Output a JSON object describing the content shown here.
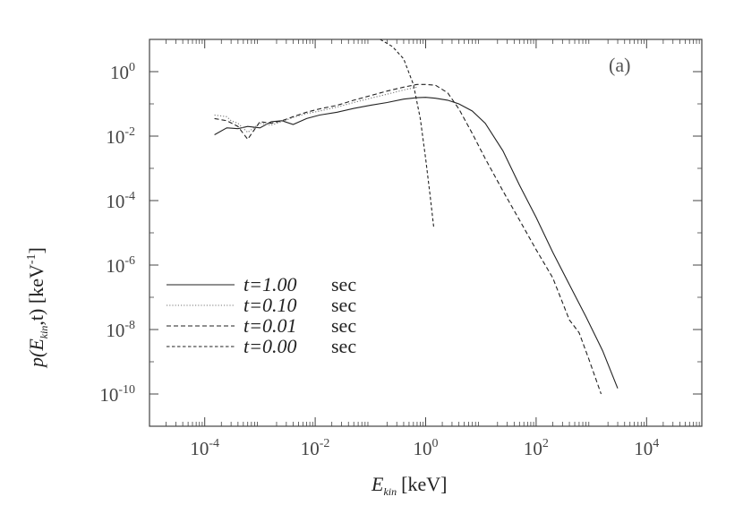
{
  "chart_data": {
    "type": "line",
    "title": "",
    "panel_label": "(a)",
    "xlabel": {
      "main": "E",
      "sub": "kin",
      "unit": "[keV]"
    },
    "ylabel": {
      "text": "p(E",
      "sub": "kin",
      "rest": ",t) [keV",
      "sup": "-1",
      "end": "]"
    },
    "xscale": "log",
    "yscale": "log",
    "xlim": [
      1e-05,
      100000
    ],
    "ylim": [
      1e-11,
      10
    ],
    "xticks": [
      {
        "value": 0.0001,
        "base": "10",
        "exp": "-4"
      },
      {
        "value": 0.01,
        "base": "10",
        "exp": "-2"
      },
      {
        "value": 1,
        "base": "10",
        "exp": "0"
      },
      {
        "value": 100,
        "base": "10",
        "exp": "2"
      },
      {
        "value": 10000,
        "base": "10",
        "exp": "4"
      }
    ],
    "yticks": [
      {
        "value": 1,
        "base": "10",
        "exp": "0"
      },
      {
        "value": 0.01,
        "base": "10",
        "exp": "-2"
      },
      {
        "value": 0.0001,
        "base": "10",
        "exp": "-4"
      },
      {
        "value": 1e-06,
        "base": "10",
        "exp": "-6"
      },
      {
        "value": 1e-08,
        "base": "10",
        "exp": "-8"
      },
      {
        "value": 1e-10,
        "base": "10",
        "exp": "-10"
      }
    ],
    "grid": false,
    "legend_position": "center-left",
    "series": [
      {
        "name": "t=1.00",
        "unit": "sec",
        "style": "solid",
        "color": "#222222",
        "x": [
          0.00015,
          0.00025,
          0.0004,
          0.0006,
          0.001,
          0.0016,
          0.0025,
          0.004,
          0.007,
          0.012,
          0.025,
          0.05,
          0.1,
          0.2,
          0.4,
          0.7,
          1.0,
          1.5,
          2.5,
          4,
          7,
          12,
          25,
          50,
          100,
          200,
          400,
          800,
          1600,
          3000
        ],
        "y": [
          0.011,
          0.018,
          0.017,
          0.02,
          0.018,
          0.028,
          0.03,
          0.023,
          0.035,
          0.045,
          0.055,
          0.072,
          0.09,
          0.11,
          0.14,
          0.155,
          0.16,
          0.15,
          0.13,
          0.1,
          0.06,
          0.025,
          0.0035,
          0.0003,
          3e-05,
          2.5e-06,
          2.5e-07,
          2.5e-08,
          2.2e-09,
          1.5e-10
        ]
      },
      {
        "name": "t=0.10",
        "unit": "sec",
        "style": "dotted",
        "color": "#777777",
        "x": [
          0.00015,
          0.00025,
          0.0003,
          0.0004,
          0.0006,
          0.001,
          0.0016,
          0.0025,
          0.004,
          0.007,
          0.012,
          0.025,
          0.05,
          0.1,
          0.2,
          0.4,
          0.7
        ],
        "y": [
          0.045,
          0.04,
          0.03,
          0.025,
          0.013,
          0.025,
          0.022,
          0.028,
          0.038,
          0.05,
          0.06,
          0.08,
          0.11,
          0.15,
          0.2,
          0.27,
          0.33
        ]
      },
      {
        "name": "t=0.01",
        "unit": "sec",
        "style": "dashed",
        "color": "#222222",
        "x": [
          0.00015,
          0.00025,
          0.0004,
          0.0006,
          0.001,
          0.0016,
          0.0025,
          0.004,
          0.007,
          0.012,
          0.025,
          0.05,
          0.1,
          0.2,
          0.4,
          0.7,
          1.0,
          1.5,
          2.5,
          4,
          7,
          12,
          25,
          50,
          100,
          200,
          400,
          600,
          900,
          1500
        ],
        "y": [
          0.035,
          0.03,
          0.02,
          0.008,
          0.028,
          0.025,
          0.03,
          0.04,
          0.055,
          0.07,
          0.09,
          0.13,
          0.18,
          0.25,
          0.33,
          0.4,
          0.4,
          0.38,
          0.22,
          0.07,
          0.012,
          0.002,
          0.0002,
          2.5e-05,
          3e-06,
          4e-07,
          2e-08,
          8e-09,
          1.2e-09,
          1e-10
        ]
      },
      {
        "name": "t=0.00",
        "unit": "sec",
        "style": "dashed-fine",
        "color": "#222222",
        "x": [
          0.15,
          0.25,
          0.4,
          0.6,
          0.8,
          1.0,
          1.2,
          1.4
        ],
        "y": [
          10,
          6,
          2.5,
          0.4,
          0.035,
          0.002,
          0.00015,
          1.5e-05
        ]
      }
    ]
  }
}
